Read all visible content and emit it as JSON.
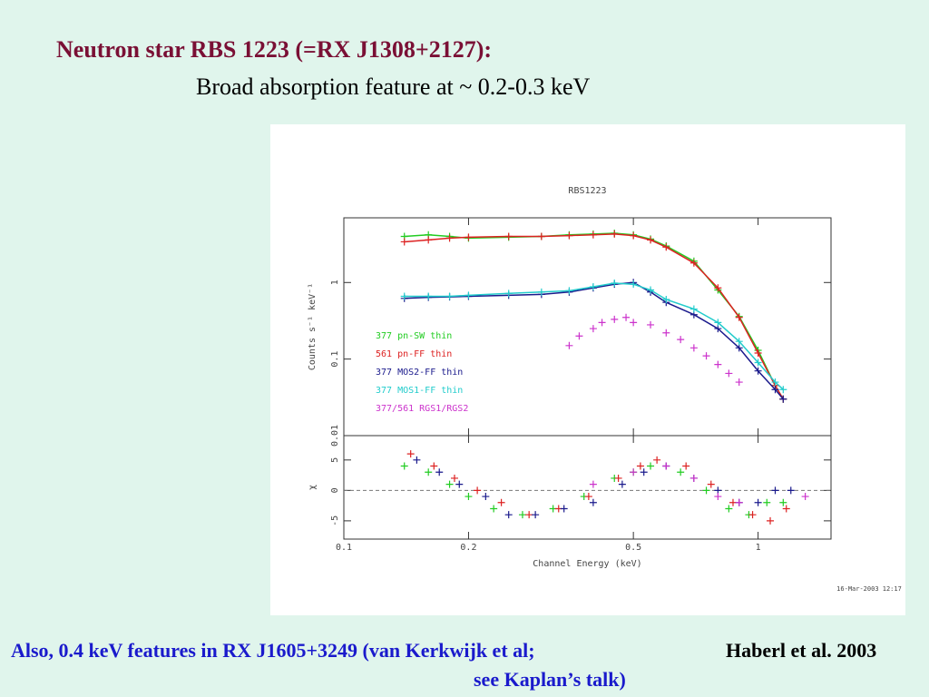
{
  "slide": {
    "title": "Neutron star RBS 1223 (=RX J1308+2127):",
    "subtitle": "Broad  absorption feature at ~ 0.2-0.3 keV",
    "footnote": [
      "Also, 0.4 keV features in RX J1605+3249 (van Kerkwijk et al;",
      "see Kaplan’s talk)"
    ],
    "credit": "Haberl et al. 2003",
    "timestamp": "16-Mar-2003 12:17"
  },
  "chart_data": [
    {
      "type": "line",
      "title": "RBS1223",
      "ylabel": "Counts s⁻¹ keV⁻¹",
      "xscale": "log",
      "yscale": "log",
      "xlim": [
        0.1,
        1.5
      ],
      "ylim": [
        0.01,
        7
      ],
      "xticks": [
        0.1,
        0.2,
        0.5,
        1
      ],
      "yticks": [
        0.01,
        0.1,
        1
      ],
      "legend": "lower left",
      "series": [
        {
          "name": "377 pn-SW thin",
          "color": "#22cc22",
          "line": true,
          "x": [
            0.14,
            0.16,
            0.18,
            0.2,
            0.25,
            0.3,
            0.35,
            0.4,
            0.45,
            0.5,
            0.55,
            0.6,
            0.7,
            0.8,
            0.9,
            1.0,
            1.1,
            1.15
          ],
          "values": [
            4.0,
            4.2,
            4.0,
            3.8,
            3.9,
            4.0,
            4.2,
            4.3,
            4.4,
            4.2,
            3.7,
            3.0,
            1.9,
            0.8,
            0.36,
            0.13,
            0.045,
            0.03
          ]
        },
        {
          "name": "561 pn-FF thin",
          "color": "#dd2222",
          "line": true,
          "x": [
            0.14,
            0.16,
            0.18,
            0.2,
            0.25,
            0.3,
            0.35,
            0.4,
            0.45,
            0.5,
            0.55,
            0.6,
            0.7,
            0.8,
            0.9,
            1.0,
            1.1,
            1.15
          ],
          "values": [
            3.4,
            3.6,
            3.8,
            3.9,
            4.0,
            4.0,
            4.1,
            4.2,
            4.3,
            4.1,
            3.6,
            2.9,
            1.8,
            0.85,
            0.35,
            0.12,
            0.045,
            0.03
          ]
        },
        {
          "name": "377 MOS2-FF thin",
          "color": "#1a1a8c",
          "line": true,
          "x": [
            0.14,
            0.16,
            0.18,
            0.2,
            0.25,
            0.3,
            0.35,
            0.4,
            0.45,
            0.5,
            0.55,
            0.6,
            0.7,
            0.8,
            0.9,
            1.0,
            1.1,
            1.15
          ],
          "values": [
            0.62,
            0.64,
            0.65,
            0.66,
            0.68,
            0.7,
            0.75,
            0.85,
            0.95,
            1.0,
            0.75,
            0.55,
            0.38,
            0.25,
            0.14,
            0.07,
            0.04,
            0.03
          ]
        },
        {
          "name": "377 MOS1-FF thin",
          "color": "#22cccc",
          "line": true,
          "x": [
            0.14,
            0.16,
            0.18,
            0.2,
            0.25,
            0.3,
            0.35,
            0.4,
            0.45,
            0.5,
            0.55,
            0.6,
            0.7,
            0.8,
            0.9,
            1.0,
            1.1,
            1.15
          ],
          "values": [
            0.66,
            0.66,
            0.66,
            0.68,
            0.72,
            0.75,
            0.78,
            0.88,
            0.98,
            0.95,
            0.8,
            0.6,
            0.45,
            0.3,
            0.17,
            0.09,
            0.05,
            0.04
          ]
        },
        {
          "name": "377/561 RGS1/RGS2",
          "color": "#cc33cc",
          "line": false,
          "x": [
            0.35,
            0.37,
            0.4,
            0.42,
            0.45,
            0.48,
            0.5,
            0.55,
            0.6,
            0.65,
            0.7,
            0.75,
            0.8,
            0.85,
            0.9
          ],
          "values": [
            0.15,
            0.2,
            0.25,
            0.3,
            0.33,
            0.35,
            0.3,
            0.28,
            0.22,
            0.18,
            0.14,
            0.11,
            0.085,
            0.065,
            0.05
          ]
        }
      ]
    },
    {
      "type": "scatter",
      "ylabel": "χ",
      "xlabel": "Channel Energy (keV)",
      "xscale": "log",
      "yscale": "linear",
      "xlim": [
        0.1,
        1.5
      ],
      "ylim": [
        -8,
        9
      ],
      "xticks": [
        0.1,
        0.2,
        0.5,
        1
      ],
      "yticks": [
        -5,
        0,
        5
      ],
      "zero_line": true,
      "series": [
        {
          "color": "#22cc22",
          "x": [
            0.14,
            0.16,
            0.18,
            0.2,
            0.23,
            0.27,
            0.32,
            0.38,
            0.45,
            0.5,
            0.55,
            0.65,
            0.75,
            0.85,
            0.95,
            1.05,
            1.15
          ],
          "values": [
            4,
            3,
            1,
            -1,
            -3,
            -4,
            -3,
            -1,
            2,
            3,
            4,
            3,
            0,
            -3,
            -4,
            -2,
            -2
          ]
        },
        {
          "color": "#dd2222",
          "x": [
            0.145,
            0.165,
            0.185,
            0.21,
            0.24,
            0.28,
            0.33,
            0.39,
            0.46,
            0.52,
            0.57,
            0.67,
            0.77,
            0.87,
            0.97,
            1.07,
            1.17
          ],
          "values": [
            6,
            4,
            2,
            0,
            -2,
            -4,
            -3,
            -1,
            2,
            4,
            5,
            4,
            1,
            -2,
            -4,
            -5,
            -3
          ]
        },
        {
          "color": "#1a1a8c",
          "x": [
            0.15,
            0.17,
            0.19,
            0.22,
            0.25,
            0.29,
            0.34,
            0.4,
            0.47,
            0.53,
            0.6,
            0.7,
            0.8,
            0.9,
            1.0,
            1.1,
            1.2
          ],
          "values": [
            5,
            3,
            1,
            -1,
            -4,
            -4,
            -3,
            -2,
            1,
            3,
            4,
            2,
            0,
            -2,
            -2,
            0,
            0
          ]
        },
        {
          "color": "#cc33cc",
          "x": [
            0.4,
            0.5,
            0.6,
            0.7,
            0.8,
            0.9,
            1.3
          ],
          "values": [
            1,
            3,
            4,
            2,
            -1,
            -2,
            -1
          ]
        }
      ]
    }
  ]
}
